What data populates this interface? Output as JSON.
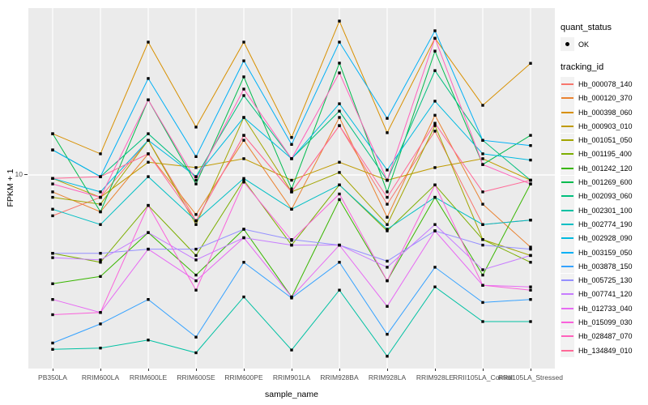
{
  "figure": {
    "x_axis_title": "sample_name",
    "y_axis_title": "FPKM + 1"
  },
  "legend": {
    "quant_status": {
      "title": "quant_status",
      "items": [
        {
          "label": "OK",
          "marker": "black-point"
        }
      ]
    },
    "tracking_id": {
      "title": "tracking_id"
    }
  },
  "style_colors": {
    "panel_bg": "#EBEBEB",
    "grid": "#FFFFFF",
    "tick_label": "#4D4D4D",
    "axis_title": "#000000",
    "legend_key_bg": "#F2F2F2",
    "point": "#000000"
  },
  "chart_data": {
    "type": "line",
    "title": "",
    "xlabel": "sample_name",
    "ylabel": "FPKM + 1",
    "yscale": "log10",
    "yticks": [
      10
    ],
    "ytick_labels": [
      "10"
    ],
    "ylim_approx": [
      0.95,
      70
    ],
    "grid": "white major gridlines on gray panel",
    "legend_position": "right",
    "point_marker": "small black point on every value (quant_status = OK)",
    "categories": [
      "PB350LA",
      "RRIM600LA",
      "RRIM600LE",
      "RRIM600SE",
      "RRIM600PE",
      "RRIM901LA",
      "RRIM928BA",
      "RRIM928LA",
      "RRIM928LE",
      "RRII105LA_Control",
      "RRII105LA_Stressed"
    ],
    "series": [
      {
        "name": "Hb_000078_140",
        "color": "#F8766D",
        "values": [
          6.2,
          7.7,
          15.0,
          5.85,
          15.9,
          8.2,
          17.8,
          7.1,
          16.7,
          5.6,
          5.9
        ]
      },
      {
        "name": "Hb_000120_370",
        "color": "#EA8331",
        "values": [
          8.2,
          6.5,
          12.8,
          6.3,
          15.0,
          6.7,
          19.6,
          6.1,
          20.1,
          7.1,
          4.3
        ]
      },
      {
        "name": "Hb_000398_060",
        "color": "#D89000",
        "values": [
          16.2,
          12.8,
          47.3,
          17.5,
          47.3,
          15.5,
          60.5,
          16.4,
          49.5,
          22.6,
          36.9
        ]
      },
      {
        "name": "Hb_000903_010",
        "color": "#C09B00",
        "values": [
          9.6,
          7.7,
          11.6,
          10.9,
          12.1,
          9.4,
          11.6,
          9.4,
          10.9,
          12.1,
          9.4
        ]
      },
      {
        "name": "Hb_001051_050",
        "color": "#A3A500",
        "values": [
          7.7,
          7.1,
          15.0,
          5.6,
          19.6,
          8.2,
          10.3,
          5.6,
          17.8,
          4.7,
          3.9
        ]
      },
      {
        "name": "Hb_001195_400",
        "color": "#7CAE00",
        "values": [
          4.0,
          3.6,
          7.0,
          3.9,
          9.4,
          4.4,
          8.9,
          5.2,
          8.9,
          4.7,
          3.6
        ]
      },
      {
        "name": "Hb_001242_120",
        "color": "#39B600",
        "values": [
          2.8,
          3.05,
          5.1,
          3.1,
          5.3,
          2.4,
          7.5,
          2.9,
          7.7,
          3.1,
          9.0
        ]
      },
      {
        "name": "Hb_001269_600",
        "color": "#00BB4E",
        "values": [
          16.2,
          6.5,
          24.1,
          9.0,
          31.5,
          8.5,
          37.0,
          8.2,
          42.6,
          11.3,
          15.9
        ]
      },
      {
        "name": "Hb_002093_060",
        "color": "#00BF7D",
        "values": [
          13.4,
          9.8,
          16.2,
          9.8,
          25.3,
          12.1,
          21.1,
          9.4,
          33.9,
          15.0,
          9.4
        ]
      },
      {
        "name": "Hb_002301_100",
        "color": "#00C1A3",
        "values": [
          1.3,
          1.32,
          1.45,
          1.25,
          2.4,
          1.29,
          2.6,
          1.2,
          2.7,
          1.8,
          1.8
        ]
      },
      {
        "name": "Hb_002774_190",
        "color": "#00BFC4",
        "values": [
          6.7,
          5.6,
          9.8,
          5.85,
          9.6,
          6.7,
          8.9,
          5.3,
          7.7,
          5.6,
          5.9
        ]
      },
      {
        "name": "Hb_002928_090",
        "color": "#00BAE0",
        "values": [
          9.6,
          8.2,
          15.0,
          9.8,
          19.6,
          12.1,
          23.0,
          10.6,
          23.7,
          12.8,
          11.9
        ]
      },
      {
        "name": "Hb_003159_050",
        "color": "#00B0F6",
        "values": [
          13.4,
          9.8,
          30.9,
          12.4,
          38.0,
          14.3,
          47.3,
          19.4,
          54.0,
          15.0,
          14.1
        ]
      },
      {
        "name": "Hb_003878_150",
        "color": "#35A2FF",
        "values": [
          1.4,
          1.75,
          2.33,
          1.5,
          3.6,
          2.37,
          3.6,
          1.55,
          3.4,
          2.25,
          2.33
        ]
      },
      {
        "name": "Hb_005725_130",
        "color": "#9590FF",
        "values": [
          4.0,
          4.0,
          4.2,
          4.2,
          5.3,
          4.7,
          4.4,
          3.65,
          5.2,
          4.4,
          4.2
        ]
      },
      {
        "name": "Hb_007741_120",
        "color": "#C77CFF",
        "values": [
          3.8,
          3.7,
          5.1,
          3.7,
          4.8,
          4.4,
          4.4,
          3.4,
          5.6,
          3.3,
          3.9
        ]
      },
      {
        "name": "Hb_012733_040",
        "color": "#E76BF3",
        "values": [
          2.33,
          2.0,
          4.2,
          2.9,
          4.8,
          2.4,
          4.4,
          2.15,
          5.2,
          2.75,
          2.7
        ]
      },
      {
        "name": "Hb_015099_030",
        "color": "#FA62DB",
        "values": [
          1.95,
          2.0,
          7.0,
          2.6,
          9.2,
          4.65,
          8.0,
          2.9,
          8.9,
          2.75,
          2.6
        ]
      },
      {
        "name": "Hb_028487_070",
        "color": "#FF62BC",
        "values": [
          9.0,
          7.7,
          24.1,
          9.4,
          27.3,
          12.1,
          33.0,
          9.4,
          49.5,
          11.3,
          9.0
        ]
      },
      {
        "name": "Hb_134849_010",
        "color": "#FF6A98",
        "values": [
          9.6,
          9.8,
          12.8,
          5.85,
          15.9,
          8.2,
          17.8,
          7.7,
          18.3,
          8.2,
          9.4
        ]
      }
    ]
  }
}
